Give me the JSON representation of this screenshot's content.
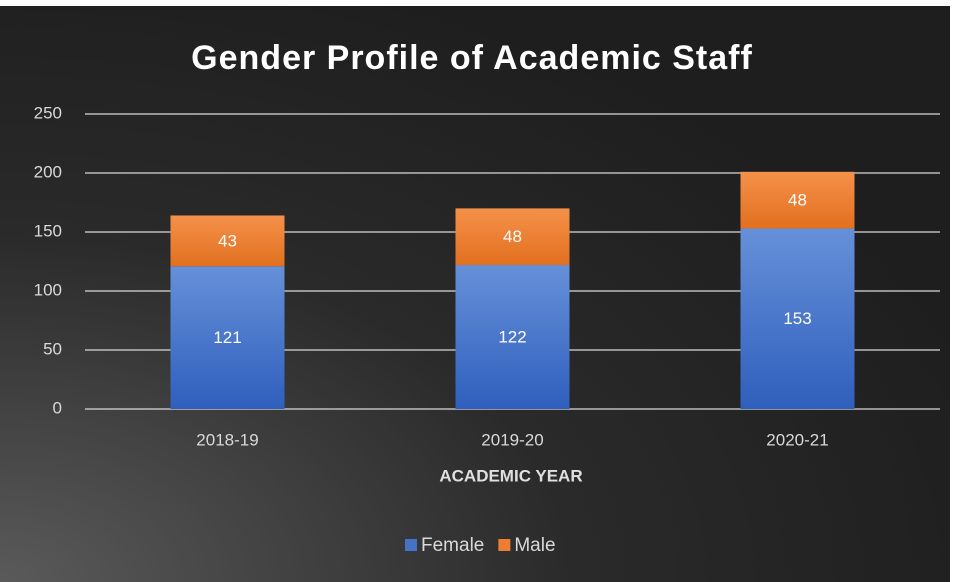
{
  "chart_data": {
    "type": "stacked_bar",
    "title": "Gender Profile of Academic Staff",
    "x_label": "ACADEMIC YEAR",
    "categories": [
      "2018-19",
      "2019-20",
      "2020-21"
    ],
    "series": [
      {
        "name": "Female",
        "color": "#4472c4",
        "values": [
          121,
          122,
          153
        ]
      },
      {
        "name": "Male",
        "color": "#ed7d31",
        "values": [
          43,
          48,
          48
        ]
      }
    ],
    "ylim": [
      0,
      250
    ],
    "yticks": [
      0,
      50,
      100,
      150,
      200,
      250
    ],
    "grid": true,
    "legend": "bottom"
  }
}
